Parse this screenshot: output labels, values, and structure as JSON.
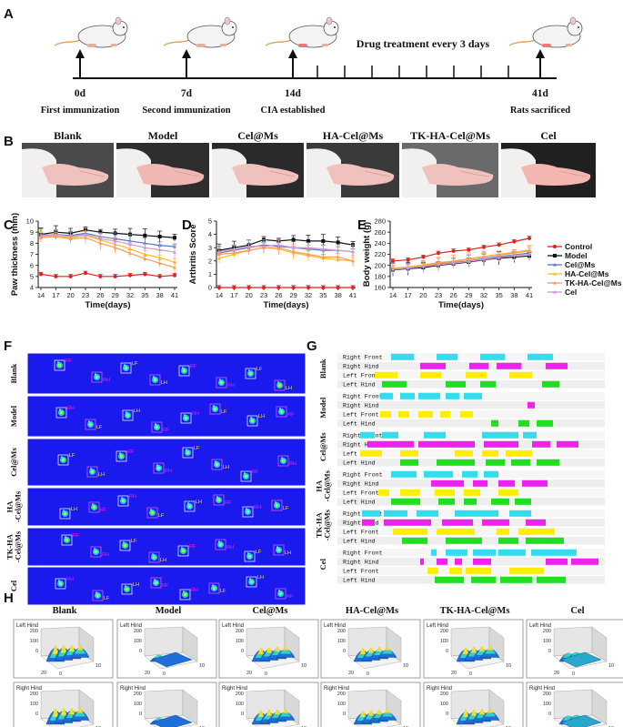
{
  "panels": {
    "a": "A",
    "b": "B",
    "c": "C",
    "d": "D",
    "e": "E",
    "f": "F",
    "g": "G",
    "h": "H"
  },
  "timeline": {
    "header": "Drug treatment every 3 days",
    "days": [
      "0d",
      "7d",
      "14d",
      "41d"
    ],
    "events": [
      "First immunization",
      "Second immunization",
      "CIA established",
      "Rats sacrificed"
    ]
  },
  "groups": [
    "Blank",
    "Model",
    "Cel@Ms",
    "HA-Cel@Ms",
    "TK-HA-Cel@Ms",
    "Cel"
  ],
  "f_labels": [
    "Blank",
    "Model",
    "Cel@Ms",
    "HA\n-Cel@Ms",
    "TK-HA\n-Cel@Ms",
    "Cel"
  ],
  "f_paw_tags": [
    "RF",
    "RH",
    "LF",
    "LH"
  ],
  "g_rows": [
    "Right Front",
    "Right Hind",
    "Left Front",
    "Left Hind"
  ],
  "g_colors": [
    "#33ddee",
    "#ee22ee",
    "#ffee00",
    "#22dd22"
  ],
  "h_views": [
    "Left Hind",
    "Right Hind"
  ],
  "h_ticks": {
    "z": [
      "200",
      "100",
      "0"
    ],
    "x": [
      "0",
      "10"
    ],
    "y": [
      "20",
      "0"
    ]
  },
  "chart_data": [
    {
      "type": "line",
      "title": "Paw thickness",
      "xlabel": "Time(days)",
      "ylabel": "Paw thickness (mm)",
      "x": [
        14,
        17,
        20,
        23,
        26,
        29,
        32,
        35,
        38,
        41
      ],
      "ylim": [
        4,
        10
      ],
      "yticks": [
        "4",
        "5",
        "6",
        "7",
        "8",
        "9",
        "10"
      ],
      "series": [
        {
          "name": "Control",
          "color": "#dd2222",
          "values": [
            5.2,
            5.0,
            5.0,
            5.3,
            5.0,
            5.0,
            5.1,
            5.2,
            5.0,
            5.1
          ]
        },
        {
          "name": "Model",
          "color": "#111111",
          "values": [
            8.8,
            9.0,
            8.9,
            9.2,
            9.0,
            8.9,
            8.8,
            8.7,
            8.6,
            8.5
          ]
        },
        {
          "name": "Cel@Ms",
          "color": "#5577cc",
          "values": [
            8.7,
            8.8,
            8.7,
            8.9,
            8.6,
            8.4,
            8.2,
            8.0,
            7.8,
            7.7
          ]
        },
        {
          "name": "HA-Cel@Ms",
          "color": "#ffbb22",
          "values": [
            8.6,
            8.7,
            8.5,
            8.7,
            8.3,
            7.9,
            7.5,
            7.0,
            6.7,
            6.3
          ]
        },
        {
          "name": "TK-HA-Cel@Ms",
          "color": "#ff9955",
          "values": [
            8.5,
            8.6,
            8.4,
            8.5,
            8.0,
            7.6,
            7.1,
            6.6,
            6.2,
            5.8
          ]
        },
        {
          "name": "Cel",
          "color": "#cc99cc",
          "values": [
            8.7,
            8.8,
            8.6,
            8.8,
            8.4,
            8.2,
            7.9,
            7.6,
            7.4,
            7.2
          ]
        }
      ]
    },
    {
      "type": "line",
      "title": "Arthritis Score",
      "xlabel": "Time(days)",
      "ylabel": "Arthritis Score",
      "x": [
        14,
        17,
        20,
        23,
        26,
        29,
        32,
        35,
        38,
        41
      ],
      "ylim": [
        0,
        5
      ],
      "yticks": [
        "0",
        "1",
        "2",
        "3",
        "4",
        "5"
      ],
      "series": [
        {
          "name": "Control",
          "color": "#dd2222",
          "values": [
            0,
            0,
            0,
            0,
            0,
            0,
            0,
            0,
            0,
            0
          ]
        },
        {
          "name": "Model",
          "color": "#111111",
          "values": [
            2.8,
            3.0,
            3.2,
            3.6,
            3.5,
            3.6,
            3.5,
            3.5,
            3.4,
            3.2
          ]
        },
        {
          "name": "Cel@Ms",
          "color": "#5577cc",
          "values": [
            2.6,
            2.8,
            3.0,
            3.2,
            3.1,
            3.0,
            2.9,
            2.8,
            2.8,
            2.7
          ]
        },
        {
          "name": "HA-Cel@Ms",
          "color": "#ffbb22",
          "values": [
            2.2,
            2.5,
            2.8,
            3.0,
            2.9,
            2.6,
            2.4,
            2.2,
            2.1,
            2.0
          ]
        },
        {
          "name": "TK-HA-Cel@Ms",
          "color": "#ff9955",
          "values": [
            2.5,
            2.6,
            2.8,
            3.0,
            3.0,
            2.7,
            2.5,
            2.3,
            2.3,
            2.0
          ]
        },
        {
          "name": "Cel",
          "color": "#cc99cc",
          "values": [
            2.7,
            2.9,
            3.1,
            3.1,
            3.2,
            3.0,
            3.0,
            2.9,
            2.8,
            2.7
          ]
        }
      ]
    },
    {
      "type": "line",
      "title": "Body weight",
      "xlabel": "Time(days)",
      "ylabel": "Body weight (g)",
      "x": [
        14,
        17,
        20,
        23,
        26,
        29,
        32,
        35,
        38,
        41
      ],
      "ylim": [
        160,
        280
      ],
      "yticks": [
        "160",
        "180",
        "200",
        "220",
        "240",
        "260",
        "280"
      ],
      "series": [
        {
          "name": "Control",
          "color": "#dd2222",
          "values": [
            208,
            210,
            215,
            222,
            226,
            228,
            233,
            237,
            243,
            249
          ]
        },
        {
          "name": "Model",
          "color": "#111111",
          "values": [
            192,
            194,
            196,
            200,
            203,
            206,
            210,
            213,
            215,
            217
          ]
        },
        {
          "name": "Cel@Ms",
          "color": "#5577cc",
          "values": [
            193,
            195,
            198,
            202,
            205,
            208,
            212,
            216,
            219,
            222
          ]
        },
        {
          "name": "HA-Cel@Ms",
          "color": "#ffbb22",
          "values": [
            195,
            197,
            201,
            205,
            208,
            212,
            216,
            220,
            224,
            228
          ]
        },
        {
          "name": "TK-HA-Cel@Ms",
          "color": "#ff9955",
          "values": [
            194,
            196,
            200,
            204,
            207,
            211,
            215,
            219,
            222,
            226
          ]
        },
        {
          "name": "Cel",
          "color": "#cc99cc",
          "values": [
            193,
            195,
            198,
            201,
            204,
            207,
            211,
            214,
            218,
            220
          ]
        }
      ]
    }
  ]
}
